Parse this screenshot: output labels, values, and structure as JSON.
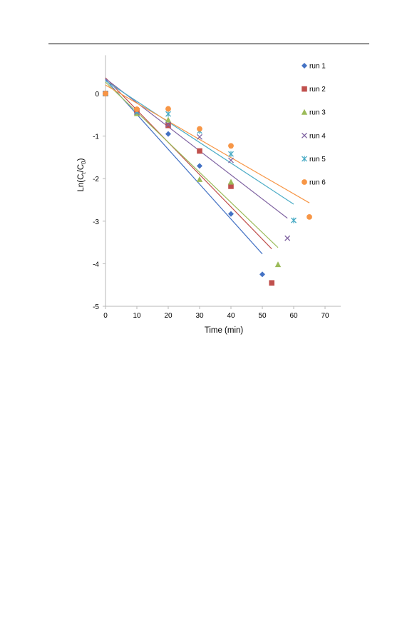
{
  "chart_data": {
    "type": "scatter",
    "xlabel": "Time (min)",
    "ylabel": "Ln(Ct/C0)",
    "ylabel_parts": {
      "prefix": "Ln(C",
      "sub1": "t",
      "mid": "/C",
      "sub2": "0",
      "suffix": ")"
    },
    "xlim": [
      0,
      75
    ],
    "ylim": [
      -5,
      0.9
    ],
    "xticks": [
      "0",
      "10",
      "20",
      "30",
      "40",
      "50",
      "60",
      "70"
    ],
    "yticks": [
      "0",
      "-1",
      "-2",
      "-3",
      "-4",
      "-5"
    ],
    "grid": false,
    "legend_position": "right",
    "series": [
      {
        "name": "run 1",
        "marker": "diamond",
        "color": "#4472C4",
        "x": [
          0,
          10,
          20,
          30,
          40,
          50
        ],
        "y": [
          0,
          -0.45,
          -0.95,
          -1.7,
          -2.83,
          -4.25
        ],
        "trendline": {
          "x": [
            0,
            50
          ],
          "y": [
            0.33,
            -3.77
          ]
        }
      },
      {
        "name": "run 2",
        "marker": "square",
        "color": "#C0504D",
        "x": [
          0,
          10,
          20,
          30,
          40,
          53
        ],
        "y": [
          0,
          -0.4,
          -0.75,
          -1.35,
          -2.18,
          -4.45
        ],
        "trendline": {
          "x": [
            0,
            53
          ],
          "y": [
            0.37,
            -3.65
          ]
        }
      },
      {
        "name": "run 3",
        "marker": "triangle",
        "color": "#9BBB59",
        "x": [
          0,
          10,
          20,
          30,
          40,
          55
        ],
        "y": [
          0,
          -0.47,
          -0.62,
          -2.02,
          -2.08,
          -4.02
        ],
        "trendline": {
          "x": [
            0,
            55
          ],
          "y": [
            0.27,
            -3.62
          ]
        }
      },
      {
        "name": "run 4",
        "marker": "x",
        "color": "#8064A2",
        "x": [
          0,
          10,
          20,
          30,
          40,
          58
        ],
        "y": [
          0,
          -0.44,
          -0.73,
          -1.02,
          -1.57,
          -3.4
        ],
        "trendline": {
          "x": [
            0,
            58
          ],
          "y": [
            0.35,
            -2.93
          ]
        }
      },
      {
        "name": "run 5",
        "marker": "star",
        "color": "#4BACC6",
        "x": [
          0,
          10,
          20,
          30,
          40,
          60
        ],
        "y": [
          0,
          -0.42,
          -0.48,
          -0.88,
          -1.42,
          -2.98
        ],
        "trendline": {
          "x": [
            0,
            60
          ],
          "y": [
            0.3,
            -2.6
          ]
        }
      },
      {
        "name": "run 6",
        "marker": "circle",
        "color": "#F79646",
        "x": [
          0,
          10,
          20,
          30,
          40,
          65
        ],
        "y": [
          0,
          -0.37,
          -0.36,
          -0.83,
          -1.23,
          -2.9
        ],
        "trendline": {
          "x": [
            0,
            65
          ],
          "y": [
            0.2,
            -2.57
          ]
        }
      }
    ]
  }
}
